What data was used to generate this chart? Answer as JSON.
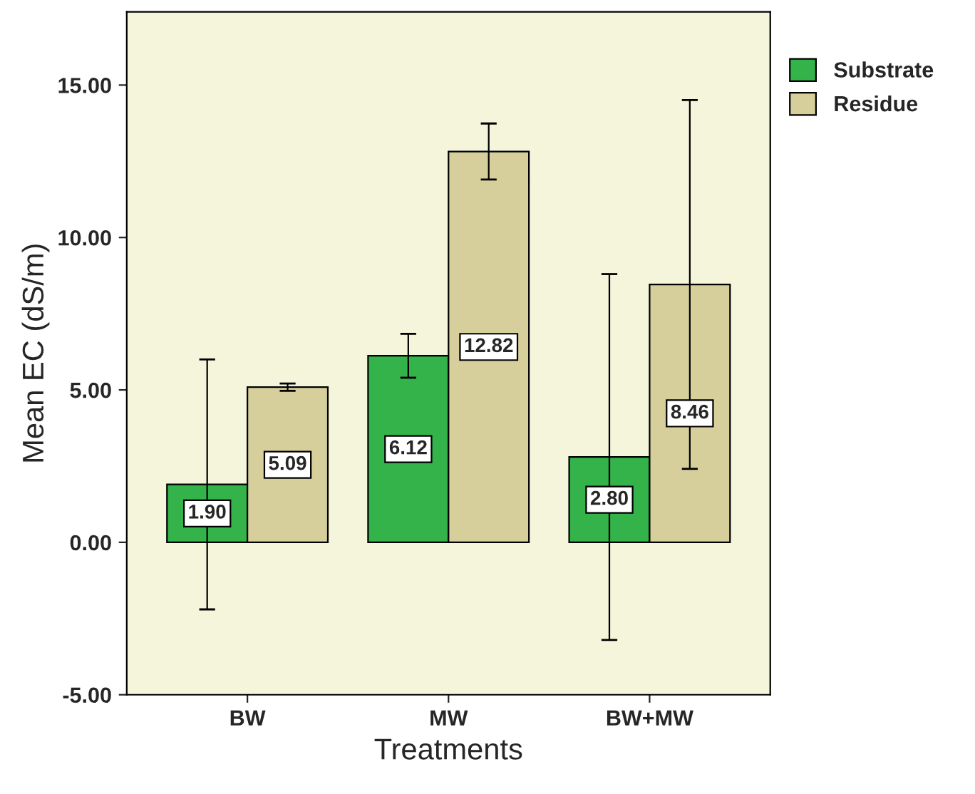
{
  "chart_data": {
    "type": "bar",
    "xlabel": "Treatments",
    "ylabel": "Mean EC (dS/m)",
    "categories": [
      "BW",
      "MW",
      "BW+MW"
    ],
    "series": [
      {
        "name": "Substrate",
        "color": "#33b34a",
        "values": [
          1.9,
          6.12,
          2.8
        ],
        "value_labels": [
          "1.90",
          "6.12",
          "2.80"
        ],
        "errors": [
          4.1,
          0.72,
          6.0
        ]
      },
      {
        "name": "Residue",
        "color": "#d6cf9c",
        "values": [
          5.09,
          12.82,
          8.46
        ],
        "value_labels": [
          "5.09",
          "12.82",
          "8.46"
        ],
        "errors": [
          0.12,
          0.92,
          6.05
        ]
      }
    ],
    "ylim": [
      -5,
      17.4
    ],
    "yticks": [
      {
        "value": -5,
        "label": "-5.00"
      },
      {
        "value": 0,
        "label": "0.00"
      },
      {
        "value": 5,
        "label": "5.00"
      },
      {
        "value": 10,
        "label": "10.00"
      },
      {
        "value": 15,
        "label": "15.00"
      }
    ],
    "legend": "top right",
    "grid": false
  }
}
